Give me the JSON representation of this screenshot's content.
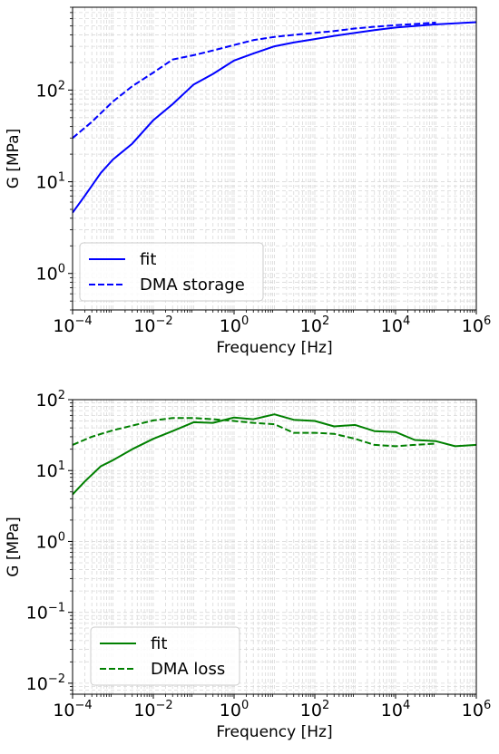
{
  "chart_data": [
    {
      "type": "line",
      "title": "",
      "xlabel": "Frequency [Hz]",
      "ylabel": "G [MPa]",
      "xscale": "log",
      "yscale": "log",
      "xlim": [
        0.0001,
        1000000
      ],
      "ylim": [
        0.4,
        800
      ],
      "xticks": [
        {
          "base": "10",
          "exp": "−4",
          "value": 0.0001
        },
        {
          "base": "10",
          "exp": "−2",
          "value": 0.01
        },
        {
          "base": "10",
          "exp": "0",
          "value": 1
        },
        {
          "base": "10",
          "exp": "2",
          "value": 100
        },
        {
          "base": "10",
          "exp": "4",
          "value": 10000
        },
        {
          "base": "10",
          "exp": "6",
          "value": 1000000
        }
      ],
      "yticks": [
        {
          "base": "10",
          "exp": "0",
          "value": 1
        },
        {
          "base": "10",
          "exp": "1",
          "value": 10
        },
        {
          "base": "10",
          "exp": "2",
          "value": 100
        }
      ],
      "grid": true,
      "legend_position": "bottom-left",
      "series": [
        {
          "name": "fit",
          "color": "#0000ff",
          "dash": "solid",
          "x": [
            0.0001,
            0.0002,
            0.0005,
            0.001,
            0.003,
            0.01,
            0.03,
            0.1,
            0.3,
            1,
            3,
            10,
            30,
            100,
            300,
            1000,
            3000,
            10000,
            100000,
            1000000
          ],
          "y": [
            4.6,
            7,
            12.5,
            17.5,
            26,
            47,
            70,
            115,
            150,
            210,
            250,
            300,
            330,
            360,
            390,
            420,
            450,
            480,
            520,
            550
          ]
        },
        {
          "name": "DMA storage",
          "color": "#0000ff",
          "dash": "dashed",
          "x": [
            0.0001,
            0.0003,
            0.001,
            0.003,
            0.01,
            0.03,
            0.1,
            0.3,
            1,
            3,
            10,
            30,
            100,
            300,
            1000,
            3000,
            10000,
            30000,
            100000
          ],
          "y": [
            30,
            45,
            75,
            110,
            155,
            215,
            240,
            270,
            310,
            350,
            380,
            400,
            420,
            440,
            470,
            490,
            510,
            525,
            545
          ]
        }
      ]
    },
    {
      "type": "line",
      "title": "",
      "xlabel": "Frequency [Hz]",
      "ylabel": "G [MPa]",
      "xscale": "log",
      "yscale": "log",
      "xlim": [
        0.0001,
        1000000
      ],
      "ylim": [
        0.007,
        100
      ],
      "xticks": [
        {
          "base": "10",
          "exp": "−4",
          "value": 0.0001
        },
        {
          "base": "10",
          "exp": "−2",
          "value": 0.01
        },
        {
          "base": "10",
          "exp": "0",
          "value": 1
        },
        {
          "base": "10",
          "exp": "2",
          "value": 100
        },
        {
          "base": "10",
          "exp": "4",
          "value": 10000
        },
        {
          "base": "10",
          "exp": "6",
          "value": 1000000
        }
      ],
      "yticks": [
        {
          "base": "10",
          "exp": "−2",
          "value": 0.01
        },
        {
          "base": "10",
          "exp": "−1",
          "value": 0.1
        },
        {
          "base": "10",
          "exp": "0",
          "value": 1
        },
        {
          "base": "10",
          "exp": "1",
          "value": 10
        },
        {
          "base": "10",
          "exp": "2",
          "value": 100
        }
      ],
      "grid": true,
      "legend_position": "bottom-left",
      "series": [
        {
          "name": "fit",
          "color": "#008000",
          "dash": "solid",
          "x": [
            0.0001,
            0.0002,
            0.0005,
            0.001,
            0.003,
            0.01,
            0.03,
            0.1,
            0.3,
            1,
            3,
            10,
            30,
            100,
            300,
            1000,
            3000,
            10000,
            30000,
            100000,
            300000,
            1000000
          ],
          "y": [
            4.6,
            7,
            11.5,
            14,
            20,
            28,
            36,
            48,
            47,
            56,
            53,
            62,
            52,
            50,
            42,
            44,
            36,
            35,
            27,
            26,
            22,
            23
          ]
        },
        {
          "name": "DMA loss",
          "color": "#008000",
          "dash": "dashed",
          "x": [
            0.0001,
            0.0003,
            0.001,
            0.003,
            0.01,
            0.03,
            0.1,
            0.3,
            1,
            3,
            10,
            30,
            100,
            300,
            1000,
            3000,
            10000,
            30000,
            100000
          ],
          "y": [
            23,
            30,
            37,
            43,
            51,
            55,
            55,
            53,
            50,
            47,
            45,
            34,
            34,
            33,
            28,
            23,
            22,
            23,
            24
          ]
        }
      ]
    }
  ]
}
